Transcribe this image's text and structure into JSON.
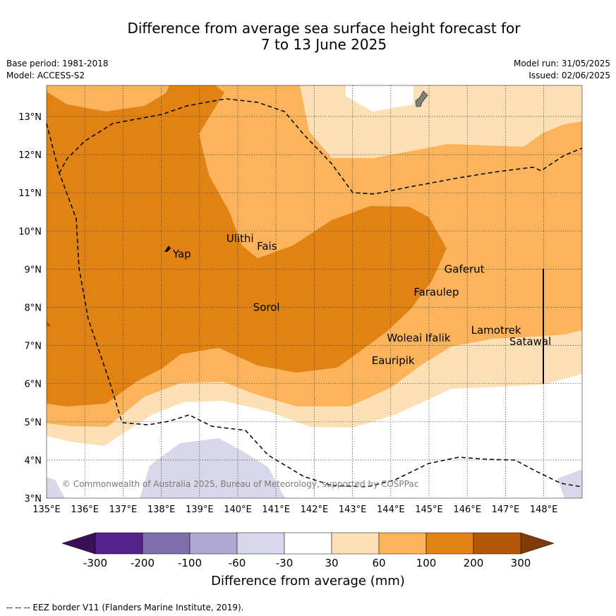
{
  "title": {
    "line1": "Difference from average sea surface height forecast for",
    "line2": "7 to 13 June 2025"
  },
  "meta": {
    "base_period": "Base period: 1981-2018",
    "model": "Model: ACCESS-S2",
    "model_run": "Model run: 31/05/2025",
    "issued": "Issued: 02/06/2025"
  },
  "map": {
    "lon_range": [
      135,
      149
    ],
    "lat_range": [
      3,
      13.8
    ],
    "lon_ticks": [
      "135°E",
      "136°E",
      "137°E",
      "138°E",
      "139°E",
      "140°E",
      "141°E",
      "142°E",
      "143°E",
      "144°E",
      "145°E",
      "146°E",
      "147°E",
      "148°E"
    ],
    "lat_ticks": [
      "3°N",
      "4°N",
      "5°N",
      "6°N",
      "7°N",
      "8°N",
      "9°N",
      "10°N",
      "11°N",
      "12°N",
      "13°N"
    ],
    "grid": "dotted",
    "places": [
      {
        "name": "Yap",
        "lon": 138.3,
        "lat": 9.4
      },
      {
        "name": "Ulithi",
        "lon": 139.7,
        "lat": 9.8
      },
      {
        "name": "Fais",
        "lon": 140.5,
        "lat": 9.6
      },
      {
        "name": "Gaferut",
        "lon": 145.4,
        "lat": 9.0
      },
      {
        "name": "Faraulep",
        "lon": 144.6,
        "lat": 8.4
      },
      {
        "name": "Sorol",
        "lon": 140.4,
        "lat": 8.0
      },
      {
        "name": "Woleai",
        "lon": 143.9,
        "lat": 7.2
      },
      {
        "name": "Ifalik",
        "lon": 144.9,
        "lat": 7.2
      },
      {
        "name": "Lamotrek",
        "lon": 146.1,
        "lat": 7.4
      },
      {
        "name": "Satawal",
        "lon": 147.1,
        "lat": 7.1
      },
      {
        "name": "Eauripik",
        "lon": 143.5,
        "lat": 6.6
      }
    ],
    "copyright": "© Commonwealth of Australia 2025, Bureau of Meteorology, supported by COSPPac"
  },
  "colorbar": {
    "ticks": [
      "-300",
      "-200",
      "-100",
      "-60",
      "-30",
      "30",
      "60",
      "100",
      "200",
      "300"
    ],
    "colors": {
      "extend_low": "#3b0f57",
      "neg_300_200": "#54238a",
      "neg_200_100": "#7e6eac",
      "neg_100_60": "#afa9d2",
      "neg_60_30": "#d8d8ea",
      "neutral": "#ffffff",
      "pos_30_60": "#fee0b6",
      "pos_60_100": "#fbb45c",
      "pos_100_200": "#e08214",
      "pos_200_300": "#b35806",
      "extend_high": "#7f3b08"
    },
    "label": "Difference from average (mm)"
  },
  "footnote": "--  --  -- EEZ border V11 (Flanders Marine Institute, 2019)."
}
